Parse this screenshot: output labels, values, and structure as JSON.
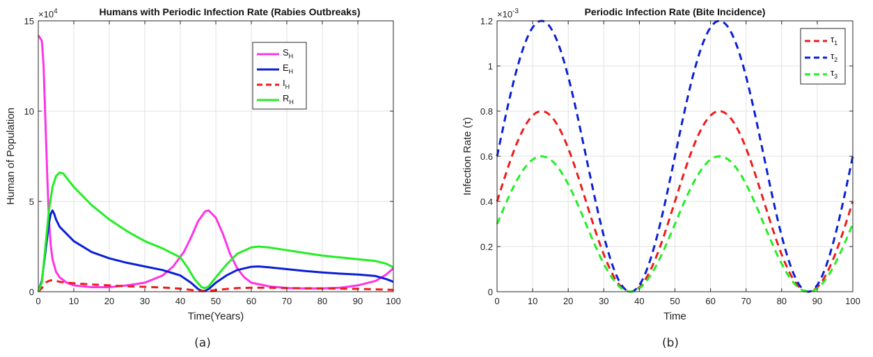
{
  "chart_data": [
    {
      "type": "line",
      "title": "Humans with Periodic Infection Rate (Rabies Outbreaks)",
      "caption": "(a)",
      "xlabel": "Time(Years)",
      "ylabel": "Human of Population",
      "exponent_label": "×10",
      "exponent_power": "4",
      "xlim": [
        0,
        100
      ],
      "ylim": [
        0,
        15
      ],
      "xticks": [
        "0",
        "10",
        "20",
        "30",
        "40",
        "50",
        "60",
        "70",
        "80",
        "90",
        "100"
      ],
      "yticks": [
        "0",
        "5",
        "10",
        "15"
      ],
      "grid": true,
      "legend_position": "top-right",
      "series": [
        {
          "name": "S",
          "sub": "H",
          "color": "#ff33e6",
          "dash": "solid",
          "x": [
            0,
            1,
            1.5,
            2,
            2.5,
            3,
            3.5,
            4,
            5,
            6,
            8,
            10,
            15,
            20,
            25,
            30,
            35,
            38,
            41,
            43,
            45,
            47,
            48,
            50,
            52,
            54,
            56,
            58,
            60,
            65,
            70,
            75,
            80,
            85,
            90,
            95,
            98,
            100
          ],
          "y": [
            14.2,
            13.9,
            12.5,
            9.5,
            6.5,
            4.0,
            2.6,
            1.8,
            1.1,
            0.8,
            0.5,
            0.35,
            0.25,
            0.25,
            0.35,
            0.5,
            0.9,
            1.4,
            2.2,
            3.0,
            3.9,
            4.45,
            4.5,
            4.1,
            3.2,
            2.1,
            1.3,
            0.8,
            0.5,
            0.3,
            0.2,
            0.18,
            0.18,
            0.22,
            0.35,
            0.6,
            0.95,
            1.3
          ]
        },
        {
          "name": "E",
          "sub": "H",
          "color": "#0a1fd6",
          "dash": "solid",
          "x": [
            0,
            1,
            2,
            3,
            3.5,
            4,
            4.5,
            5,
            6,
            8,
            10,
            15,
            20,
            25,
            30,
            35,
            40,
            43,
            45,
            46,
            47,
            48,
            50,
            53,
            56,
            60,
            62,
            65,
            70,
            75,
            80,
            85,
            90,
            95,
            98,
            100
          ],
          "y": [
            0,
            0.6,
            2.2,
            3.8,
            4.3,
            4.5,
            4.3,
            4.0,
            3.6,
            3.2,
            2.8,
            2.2,
            1.85,
            1.6,
            1.4,
            1.2,
            0.9,
            0.5,
            0.15,
            0.05,
            0.05,
            0.15,
            0.5,
            0.9,
            1.2,
            1.38,
            1.4,
            1.35,
            1.25,
            1.15,
            1.07,
            1.0,
            0.95,
            0.87,
            0.7,
            0.55
          ]
        },
        {
          "name": "I",
          "sub": "H",
          "color": "#ee1b1b",
          "dash": "dashed",
          "x": [
            0,
            1,
            2,
            3,
            4,
            5,
            6,
            8,
            10,
            15,
            20,
            25,
            30,
            35,
            40,
            43,
            45,
            46,
            47,
            48,
            50,
            53,
            56,
            60,
            65,
            70,
            75,
            80,
            85,
            90,
            95,
            100
          ],
          "y": [
            0,
            0.2,
            0.5,
            0.6,
            0.65,
            0.6,
            0.55,
            0.5,
            0.47,
            0.4,
            0.35,
            0.3,
            0.27,
            0.23,
            0.17,
            0.1,
            0.05,
            0.03,
            0.03,
            0.05,
            0.09,
            0.15,
            0.2,
            0.22,
            0.22,
            0.2,
            0.19,
            0.18,
            0.17,
            0.16,
            0.13,
            0.1
          ]
        },
        {
          "name": "R",
          "sub": "H",
          "color": "#22ee22",
          "dash": "solid",
          "x": [
            0,
            1,
            2,
            3,
            4,
            5,
            6,
            7,
            8,
            10,
            15,
            20,
            25,
            30,
            35,
            40,
            42,
            44,
            46,
            47,
            48,
            50,
            53,
            56,
            60,
            62,
            65,
            70,
            75,
            80,
            85,
            90,
            95,
            98,
            100
          ],
          "y": [
            0,
            0.5,
            2.5,
            4.5,
            5.8,
            6.4,
            6.6,
            6.55,
            6.3,
            5.8,
            4.8,
            4.0,
            3.35,
            2.8,
            2.4,
            1.9,
            1.35,
            0.7,
            0.25,
            0.2,
            0.3,
            0.8,
            1.5,
            2.1,
            2.45,
            2.5,
            2.45,
            2.3,
            2.15,
            2.0,
            1.9,
            1.8,
            1.7,
            1.55,
            1.35
          ]
        }
      ]
    },
    {
      "type": "line",
      "title": "Periodic Infection Rate (Bite Incidence)",
      "caption": "(b)",
      "xlabel": "Time",
      "ylabel": "Infection Rate (τ)",
      "exponent_label": "×10",
      "exponent_power": "-3",
      "xlim": [
        0,
        100
      ],
      "ylim": [
        0,
        1.2
      ],
      "xticks": [
        "0",
        "10",
        "20",
        "30",
        "40",
        "50",
        "60",
        "70",
        "80",
        "90",
        "100"
      ],
      "yticks": [
        "0",
        "0.2",
        "0.4",
        "0.6",
        "0.8",
        "1",
        "1.2"
      ],
      "grid": true,
      "legend_position": "top-right",
      "period": 50,
      "peak_time": 12.5,
      "series": [
        {
          "name": "τ",
          "sub": "1",
          "color": "#ee1b1b",
          "dash": "dashed",
          "amplitude": 0.4,
          "offset": 0.4
        },
        {
          "name": "τ",
          "sub": "2",
          "color": "#0a1fd6",
          "dash": "dashed",
          "amplitude": 0.6,
          "offset": 0.6
        },
        {
          "name": "τ",
          "sub": "3",
          "color": "#22ee22",
          "dash": "dashed",
          "amplitude": 0.3,
          "offset": 0.3
        }
      ]
    }
  ]
}
